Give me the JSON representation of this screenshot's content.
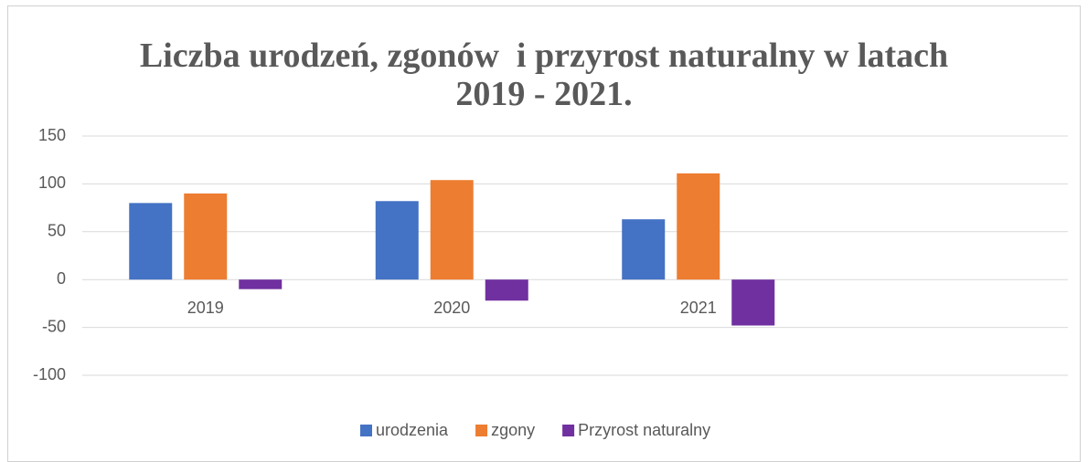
{
  "chart_data": {
    "type": "bar",
    "title": "Liczba urodzeń, zgonów  i przyrost naturalny w latach 2019 - 2021.",
    "categories": [
      "2019",
      "2020",
      "2021",
      null
    ],
    "series": [
      {
        "name": "urodzenia",
        "color": "#4472c4",
        "values": [
          80,
          82,
          63,
          null
        ]
      },
      {
        "name": "zgony",
        "color": "#ed7d31",
        "values": [
          90,
          104,
          111,
          null
        ]
      },
      {
        "name": "Przyrost naturalny",
        "color": "#7030a0",
        "values": [
          -10,
          -22,
          -48,
          null
        ]
      }
    ],
    "ylim": [
      -100,
      150
    ],
    "yticks": [
      -100,
      -50,
      0,
      50,
      100,
      150
    ],
    "grid": true,
    "legend": "bottom"
  }
}
